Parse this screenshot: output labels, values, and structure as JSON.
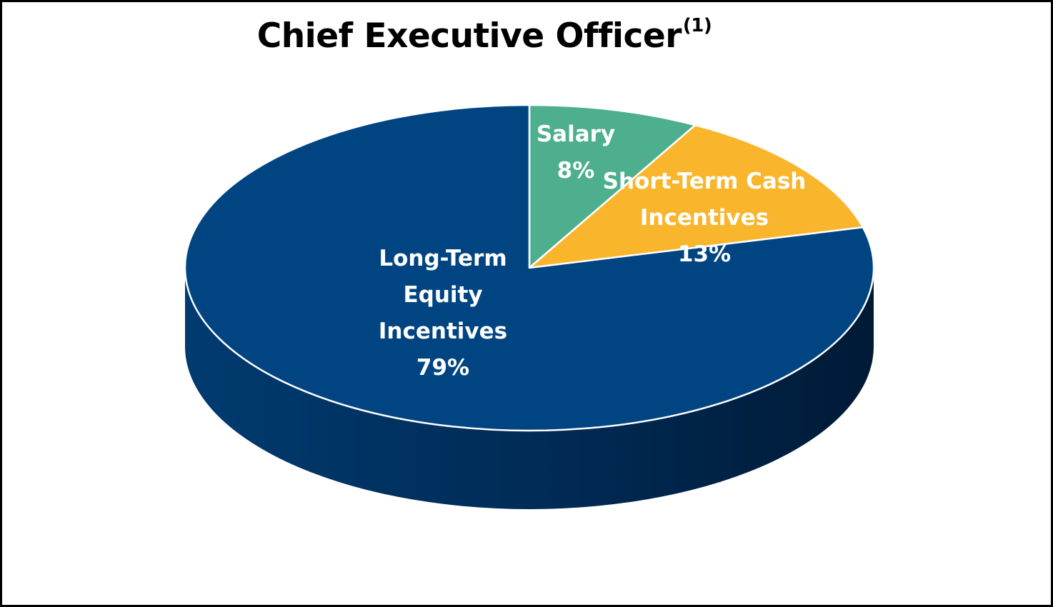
{
  "chart_data": {
    "type": "pie",
    "title": "Chief Executive Officer",
    "title_superscript": "(1)",
    "style": "3d",
    "slices": [
      {
        "label_lines": [
          "Salary"
        ],
        "value": 8,
        "value_label": "8%",
        "color": "#4daf8e"
      },
      {
        "label_lines": [
          "Short-Term Cash",
          "Incentives"
        ],
        "value": 13,
        "value_label": "13%",
        "color": "#f9b52c"
      },
      {
        "label_lines": [
          "Long-Term",
          "Equity",
          "Incentives"
        ],
        "value": 79,
        "value_label": "79%",
        "color": "#004582"
      }
    ]
  }
}
